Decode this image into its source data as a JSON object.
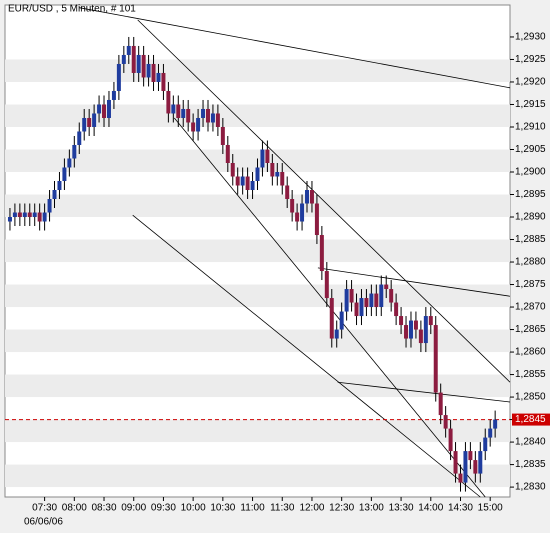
{
  "chart_data": {
    "type": "candlestick",
    "title": "EUR/USD , 5 Minuten, # 101",
    "date_label": "06/06/06",
    "up_color": "#1f3c9e",
    "down_color": "#8c1c40",
    "xlim": [
      410,
      920
    ],
    "ylim": [
      1.28278,
      1.29371
    ],
    "xticks": [
      {
        "value": 450,
        "label": "07:30"
      },
      {
        "value": 480,
        "label": "08:00"
      },
      {
        "value": 510,
        "label": "08:30"
      },
      {
        "value": 540,
        "label": "09:00"
      },
      {
        "value": 570,
        "label": "09:30"
      },
      {
        "value": 600,
        "label": "10:00"
      },
      {
        "value": 630,
        "label": "10:30"
      },
      {
        "value": 660,
        "label": "11:00"
      },
      {
        "value": 690,
        "label": "11:30"
      },
      {
        "value": 720,
        "label": "12:00"
      },
      {
        "value": 750,
        "label": "12:30"
      },
      {
        "value": 780,
        "label": "13:00"
      },
      {
        "value": 810,
        "label": "13:30"
      },
      {
        "value": 840,
        "label": "14:00"
      },
      {
        "value": 870,
        "label": "14:30"
      },
      {
        "value": 900,
        "label": "15:00"
      }
    ],
    "yticks": [
      {
        "value": 1.283,
        "label": "1,2830"
      },
      {
        "value": 1.2835,
        "label": "1,2835"
      },
      {
        "value": 1.284,
        "label": "1,2840"
      },
      {
        "value": 1.2845,
        "label": "1,2845"
      },
      {
        "value": 1.285,
        "label": "1,2850"
      },
      {
        "value": 1.2855,
        "label": "1,2855"
      },
      {
        "value": 1.286,
        "label": "1,2860"
      },
      {
        "value": 1.2865,
        "label": "1,2865"
      },
      {
        "value": 1.287,
        "label": "1,2870"
      },
      {
        "value": 1.2875,
        "label": "1,2875"
      },
      {
        "value": 1.288,
        "label": "1,2880"
      },
      {
        "value": 1.2885,
        "label": "1,2885"
      },
      {
        "value": 1.289,
        "label": "1,2890"
      },
      {
        "value": 1.2895,
        "label": "1,2895"
      },
      {
        "value": 1.29,
        "label": "1,2900"
      },
      {
        "value": 1.2905,
        "label": "1,2905"
      },
      {
        "value": 1.291,
        "label": "1,2910"
      },
      {
        "value": 1.2915,
        "label": "1,2915"
      },
      {
        "value": 1.292,
        "label": "1,2920"
      },
      {
        "value": 1.2925,
        "label": "1,2925"
      },
      {
        "value": 1.293,
        "label": "1,2930"
      }
    ],
    "last_price": {
      "value": 1.2845,
      "label": "1,2845",
      "color": "#cc0000"
    },
    "x": [
      415,
      420,
      425,
      430,
      435,
      440,
      445,
      450,
      455,
      460,
      465,
      470,
      475,
      480,
      485,
      490,
      495,
      500,
      505,
      510,
      515,
      520,
      525,
      530,
      535,
      540,
      545,
      550,
      555,
      560,
      565,
      570,
      575,
      580,
      585,
      590,
      595,
      600,
      605,
      610,
      615,
      620,
      625,
      630,
      635,
      640,
      645,
      650,
      655,
      660,
      665,
      670,
      675,
      680,
      685,
      690,
      695,
      700,
      705,
      710,
      715,
      720,
      725,
      730,
      735,
      740,
      745,
      750,
      755,
      760,
      765,
      770,
      775,
      780,
      785,
      790,
      795,
      800,
      805,
      810,
      815,
      820,
      825,
      830,
      835,
      840,
      845,
      850,
      855,
      860,
      865,
      870,
      875,
      880,
      885,
      890,
      895,
      900,
      905
    ],
    "open": [
      1.2889,
      1.289,
      1.2891,
      1.289,
      1.2891,
      1.289,
      1.2891,
      1.2889,
      1.2891,
      1.2894,
      1.2896,
      1.2898,
      1.2901,
      1.2903,
      1.2906,
      1.2909,
      1.2912,
      1.291,
      1.2913,
      1.2915,
      1.2912,
      1.2916,
      1.2918,
      1.2924,
      1.2926,
      1.2928,
      1.2922,
      1.2926,
      1.2921,
      1.2924,
      1.292,
      1.2922,
      1.2918,
      1.2913,
      1.2915,
      1.2912,
      1.2914,
      1.2911,
      1.2909,
      1.2912,
      1.2914,
      1.2911,
      1.2913,
      1.291,
      1.2906,
      1.2902,
      1.2899,
      1.2897,
      1.2899,
      1.2896,
      1.2898,
      1.2901,
      1.2905,
      1.2902,
      1.2899,
      1.29,
      1.2897,
      1.2894,
      1.2891,
      1.2889,
      1.2893,
      1.2896,
      1.2893,
      1.2886,
      1.2878,
      1.2872,
      1.2863,
      1.2865,
      1.2869,
      1.2874,
      1.2871,
      1.2868,
      1.2872,
      1.287,
      1.2873,
      1.287,
      1.2875,
      1.2874,
      1.2871,
      1.2868,
      1.2866,
      1.2863,
      1.2867,
      1.2865,
      1.2862,
      1.2868,
      1.2866,
      1.2851,
      1.2846,
      1.2843,
      1.2838,
      1.2833,
      1.2831,
      1.2838,
      1.2836,
      1.2833,
      1.2838,
      1.2841,
      1.2843
    ],
    "high": [
      1.2892,
      1.2893,
      1.2893,
      1.2893,
      1.2893,
      1.2893,
      1.2893,
      1.2893,
      1.2896,
      1.2898,
      1.29,
      1.2903,
      1.2905,
      1.2908,
      1.2911,
      1.2914,
      1.2914,
      1.2915,
      1.2917,
      1.2917,
      1.2918,
      1.292,
      1.2926,
      1.2928,
      1.293,
      1.293,
      1.2928,
      1.2928,
      1.2926,
      1.2926,
      1.2924,
      1.2924,
      1.292,
      1.2917,
      1.2917,
      1.2916,
      1.2916,
      1.2913,
      1.2914,
      1.2916,
      1.2916,
      1.2915,
      1.2915,
      1.2912,
      1.2908,
      1.2904,
      1.2901,
      1.2901,
      1.2901,
      1.29,
      1.2903,
      1.2907,
      1.2907,
      1.2904,
      1.2902,
      1.2902,
      1.2899,
      1.2896,
      1.2893,
      1.2895,
      1.2898,
      1.2898,
      1.2895,
      1.2888,
      1.288,
      1.2874,
      1.2867,
      1.2871,
      1.2876,
      1.2876,
      1.2873,
      1.2874,
      1.2874,
      1.2875,
      1.2875,
      1.2877,
      1.2877,
      1.2876,
      1.2873,
      1.287,
      1.2868,
      1.2869,
      1.2869,
      1.2867,
      1.287,
      1.287,
      1.2868,
      1.2853,
      1.2848,
      1.2845,
      1.284,
      1.2835,
      1.284,
      1.284,
      1.2838,
      1.284,
      1.2843,
      1.2845,
      1.2847
    ],
    "low": [
      1.2887,
      1.2888,
      1.2888,
      1.2888,
      1.2888,
      1.2888,
      1.2887,
      1.2887,
      1.2889,
      1.2892,
      1.2894,
      1.2896,
      1.2899,
      1.2901,
      1.2904,
      1.2907,
      1.2908,
      1.2908,
      1.2911,
      1.291,
      1.291,
      1.2914,
      1.2916,
      1.2922,
      1.2924,
      1.292,
      1.292,
      1.2919,
      1.2919,
      1.2918,
      1.2918,
      1.2916,
      1.2911,
      1.2911,
      1.291,
      1.291,
      1.2909,
      1.2907,
      1.2907,
      1.291,
      1.2909,
      1.2909,
      1.2908,
      1.2904,
      1.29,
      1.2897,
      1.2895,
      1.2895,
      1.2894,
      1.2894,
      1.2896,
      1.2899,
      1.29,
      1.2897,
      1.2897,
      1.2895,
      1.2892,
      1.2889,
      1.2887,
      1.2887,
      1.2891,
      1.2891,
      1.2884,
      1.2876,
      1.287,
      1.2861,
      1.2861,
      1.2863,
      1.2867,
      1.2869,
      1.2866,
      1.2866,
      1.2868,
      1.2868,
      1.2868,
      1.2868,
      1.2872,
      1.2869,
      1.2866,
      1.2864,
      1.2861,
      1.2861,
      1.2863,
      1.286,
      1.286,
      1.2864,
      1.2849,
      1.2844,
      1.2841,
      1.2836,
      1.2831,
      1.2829,
      1.2829,
      1.2834,
      1.2831,
      1.2831,
      1.2836,
      1.2839,
      1.2841
    ],
    "close": [
      1.289,
      1.2891,
      1.289,
      1.2891,
      1.289,
      1.2891,
      1.2889,
      1.2891,
      1.2894,
      1.2896,
      1.2898,
      1.2901,
      1.2903,
      1.2906,
      1.2909,
      1.2912,
      1.291,
      1.2913,
      1.2915,
      1.2912,
      1.2916,
      1.2918,
      1.2924,
      1.2926,
      1.2928,
      1.2922,
      1.2926,
      1.2921,
      1.2924,
      1.292,
      1.2922,
      1.2918,
      1.2913,
      1.2915,
      1.2912,
      1.2914,
      1.2911,
      1.2909,
      1.2912,
      1.2914,
      1.2911,
      1.2913,
      1.291,
      1.2906,
      1.2902,
      1.2899,
      1.2897,
      1.2899,
      1.2896,
      1.2898,
      1.2901,
      1.2905,
      1.2902,
      1.2899,
      1.29,
      1.2897,
      1.2894,
      1.2891,
      1.2889,
      1.2893,
      1.2896,
      1.2893,
      1.2886,
      1.2878,
      1.2872,
      1.2863,
      1.2865,
      1.2869,
      1.2874,
      1.2871,
      1.2868,
      1.2872,
      1.287,
      1.2873,
      1.287,
      1.2875,
      1.2874,
      1.2871,
      1.2868,
      1.2866,
      1.2863,
      1.2867,
      1.2865,
      1.2862,
      1.2868,
      1.2866,
      1.2851,
      1.2846,
      1.2843,
      1.2838,
      1.2833,
      1.2831,
      1.2838,
      1.2836,
      1.2833,
      1.2838,
      1.2841,
      1.2843,
      1.2845
    ],
    "trendlines": [
      {
        "x": [
          485,
          920
        ],
        "y": [
          1.29365,
          1.29187
        ]
      },
      {
        "x": [
          544,
          920
        ],
        "y": [
          1.29338,
          1.28533
        ]
      },
      {
        "x": [
          581,
          895
        ],
        "y": [
          1.2912,
          1.28278
        ]
      },
      {
        "x": [
          539,
          890
        ],
        "y": [
          1.28904,
          1.28278
        ]
      },
      {
        "x": [
          726,
          920
        ],
        "y": [
          1.28787,
          1.28724
        ]
      },
      {
        "x": [
          746,
          920
        ],
        "y": [
          1.28533,
          1.28489
        ]
      }
    ]
  }
}
